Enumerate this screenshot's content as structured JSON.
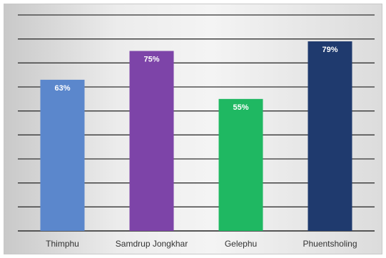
{
  "chart_data": {
    "type": "bar",
    "categories": [
      "Thimphu",
      "Samdrup Jongkhar",
      "Gelephu",
      "Phuentsholing"
    ],
    "values": [
      63,
      75,
      55,
      79
    ],
    "data_labels": [
      "63%",
      "75%",
      "55%",
      "79%"
    ],
    "colors": [
      "#5b87cc",
      "#7d44a8",
      "#1fb862",
      "#1f3a6e"
    ],
    "ylim": [
      0,
      90
    ],
    "grid": true,
    "legend": "none"
  }
}
